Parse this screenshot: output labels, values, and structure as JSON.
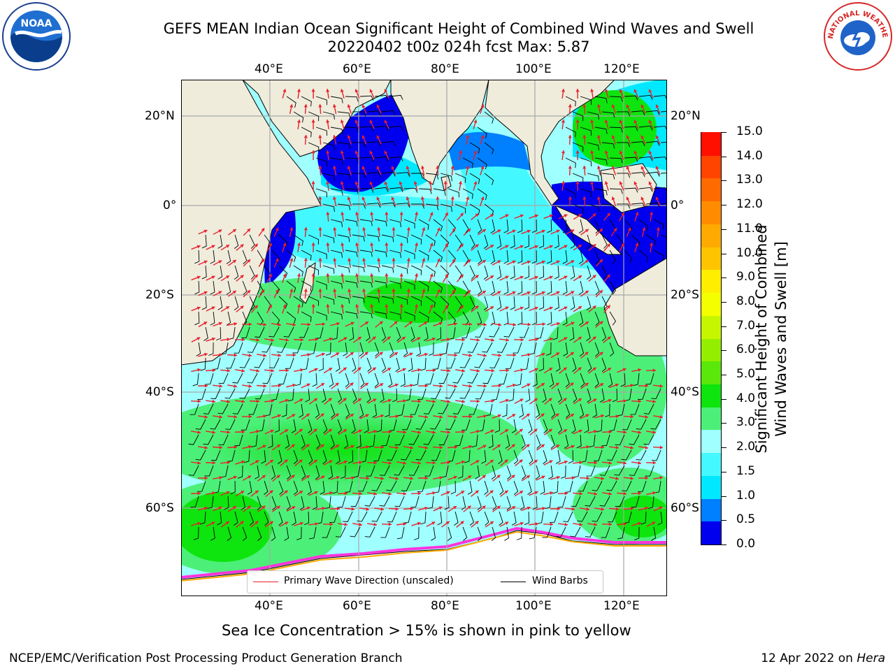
{
  "header": {
    "title_line1": "GEFS MEAN Indian Ocean Significant Height of Combined Wind Waves and Swell",
    "title_line2": "20220402 t00z 024h fcst   Max: 5.87"
  },
  "logos": {
    "left": {
      "name": "noaa-logo",
      "text": "NOAA"
    },
    "right": {
      "name": "nws-logo",
      "text": "NATIONAL WEATHER SERVICE"
    }
  },
  "map": {
    "lon_labels_top": [
      "40°E",
      "60°E",
      "80°E",
      "100°E",
      "120°E"
    ],
    "lon_labels_bottom": [
      "40°E",
      "60°E",
      "80°E",
      "100°E",
      "120°E"
    ],
    "lat_labels_left": [
      "20°N",
      "0°",
      "20°S",
      "40°S",
      "60°S"
    ],
    "lat_labels_right": [
      "20°N",
      "0°",
      "20°S",
      "40°S",
      "60°S"
    ],
    "land_color": "#efecdc",
    "grid_color": "#a8a8a8",
    "legend": [
      {
        "label": "Primary Wave Direction (unscaled)",
        "color": "#e8202a"
      },
      {
        "label": "Wind Barbs",
        "color": "#000000"
      }
    ]
  },
  "colorbar": {
    "label_line1": "Significant Height of Combined",
    "label_line2": "Wind Waves and Swell [m]",
    "ticks": [
      "15.0",
      "14.0",
      "13.0",
      "12.0",
      "11.0",
      "10.0",
      "9.0",
      "8.0",
      "7.0",
      "6.0",
      "5.0",
      "4.0",
      "3.0",
      "2.0",
      "1.5",
      "1.0",
      "0.5",
      "0.0"
    ],
    "colors": [
      "#0000ee",
      "#007fff",
      "#00e8ff",
      "#44f8ff",
      "#a0ffff",
      "#4cf078",
      "#0ee40e",
      "#5ae80a",
      "#94ee00",
      "#c6f600",
      "#f4ff00",
      "#ffee00",
      "#ffc400",
      "#ffaa00",
      "#ff8c00",
      "#ff6a00",
      "#ff4400",
      "#ff0f00"
    ]
  },
  "captions": {
    "sea_ice_note": "Sea Ice Concentration > 15% is shown in pink to yellow",
    "credit": "NCEP/EMC/Verification Post Processing Product Generation Branch",
    "date_prefix": "12 Apr 2022 on ",
    "date_host": "Hera"
  }
}
